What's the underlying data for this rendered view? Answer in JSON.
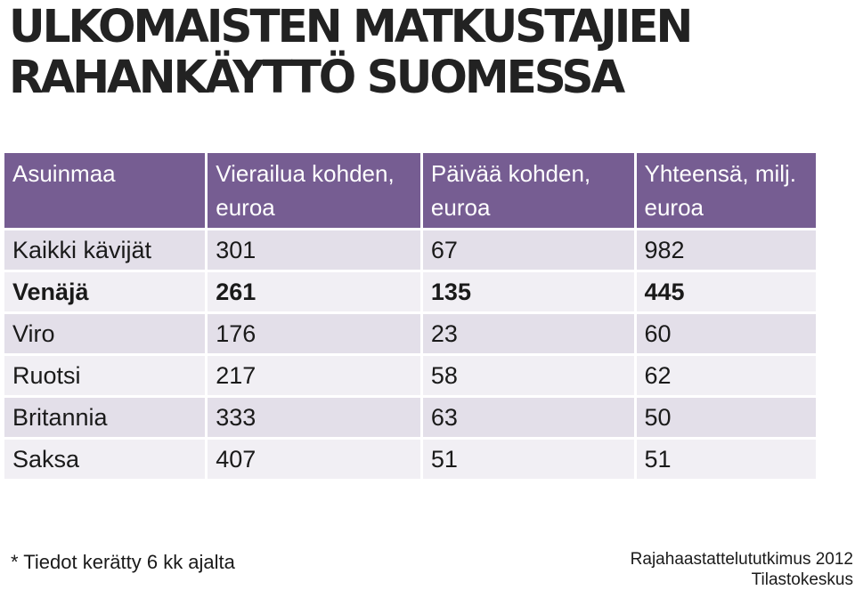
{
  "title_lines": [
    "ULKOMAISTEN MATKUSTAJIEN",
    "RAHANKÄYTTÖ SUOMESSA"
  ],
  "chart_data": {
    "type": "table",
    "columns": [
      "Asuinmaa",
      "Vierailua kohden, euroa",
      "Päivää kohden, euroa",
      "Yhteensä, milj. euroa"
    ],
    "rows": [
      {
        "label": "Kaikki kävijät",
        "values": [
          "301",
          "67",
          "982"
        ],
        "bold": false
      },
      {
        "label": "Venäjä",
        "values": [
          "261",
          "135",
          "445"
        ],
        "bold": true
      },
      {
        "label": "Viro",
        "values": [
          "176",
          "23",
          "60"
        ],
        "bold": false
      },
      {
        "label": "Ruotsi",
        "values": [
          "217",
          "58",
          "62"
        ],
        "bold": false
      },
      {
        "label": "Britannia",
        "values": [
          "333",
          "63",
          "50"
        ],
        "bold": false
      },
      {
        "label": "Saksa",
        "values": [
          "407",
          "51",
          "51"
        ],
        "bold": false
      }
    ]
  },
  "footnote": "* Tiedot kerätty 6 kk ajalta",
  "source_lines": [
    "Rajahaastattelututkimus 2012",
    "Tilastokeskus"
  ],
  "colors": {
    "header": "#765d92",
    "row_dark": "#e3dfe9",
    "row_light": "#f1eff4"
  }
}
